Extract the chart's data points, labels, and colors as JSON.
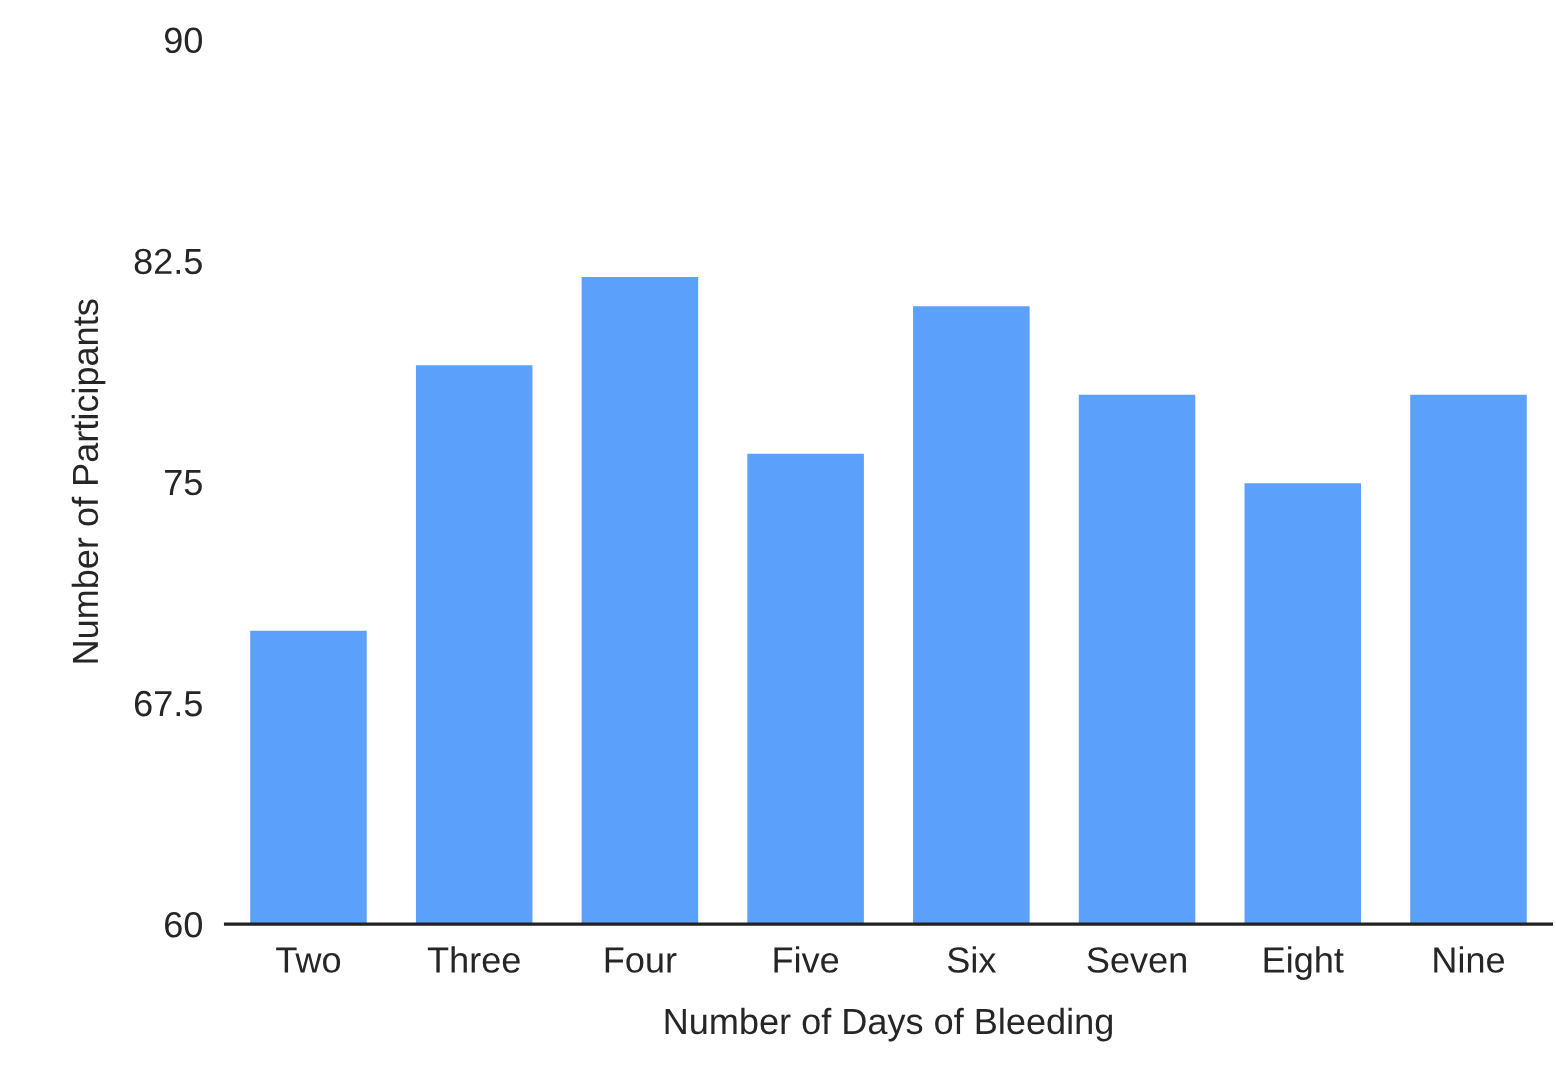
{
  "chart_data": {
    "type": "bar",
    "xlabel": "Number of Days of Bleeding",
    "ylabel": "Number of Participants",
    "categories": [
      "Two",
      "Three",
      "Four",
      "Five",
      "Six",
      "Seven",
      "Eight",
      "Nine"
    ],
    "values": [
      70,
      79,
      82,
      76,
      81,
      78,
      75,
      78
    ],
    "color": "#5ba0fb",
    "ylim": [
      60,
      90
    ],
    "yticks": [
      60,
      67.5,
      75,
      82.5,
      90
    ],
    "grid": false,
    "legend": false
  }
}
